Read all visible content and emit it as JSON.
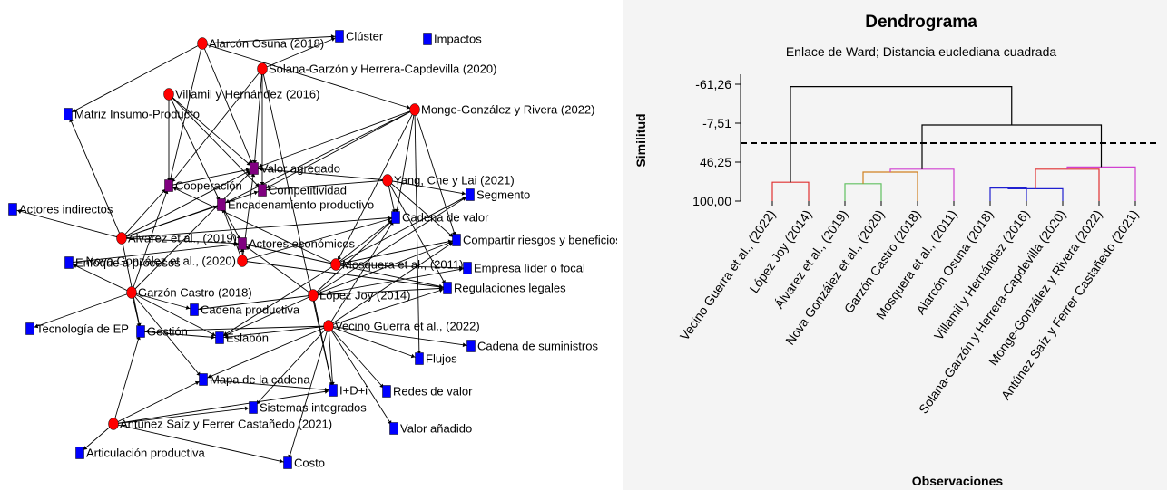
{
  "network": {
    "colors": {
      "author": "#ff0000",
      "concept": "#0000ff",
      "shared": "#800080",
      "edge": "#000000"
    },
    "nodes": [
      {
        "id": "alarcon",
        "label": "Alarcón Osuna (2018)",
        "type": "author"
      },
      {
        "id": "solana",
        "label": "Solana-Garzón y Herrera-Capdevilla (2020)",
        "type": "author"
      },
      {
        "id": "villamil",
        "label": "Villamil y Hernández (2016)",
        "type": "author"
      },
      {
        "id": "monge",
        "label": "Monge-González y Rivera (2022)",
        "type": "author"
      },
      {
        "id": "yang",
        "label": "Yang, Che y Lai (2021)",
        "type": "author"
      },
      {
        "id": "alvarez",
        "label": "Álvarez et al., (2019)",
        "type": "author"
      },
      {
        "id": "mosquera",
        "label": "Mosquera et al., (2011)",
        "type": "author"
      },
      {
        "id": "nova",
        "label": "Nova González et al., (2020)",
        "type": "author"
      },
      {
        "id": "garzon",
        "label": "Garzón Castro (2018)",
        "type": "author"
      },
      {
        "id": "lopez",
        "label": "López Joy (2014)",
        "type": "author"
      },
      {
        "id": "vecino",
        "label": "Vecino Guerra et al., (2022)",
        "type": "author"
      },
      {
        "id": "antunez",
        "label": "Antúnez Saíz y Ferrer Castañedo (2021)",
        "type": "author"
      },
      {
        "id": "cluster",
        "label": "Clúster",
        "type": "concept"
      },
      {
        "id": "impactos",
        "label": "Impactos",
        "type": "concept"
      },
      {
        "id": "matriz",
        "label": "Matriz Insumo-Producto",
        "type": "concept"
      },
      {
        "id": "valoragregado",
        "label": "Valor agregado",
        "type": "shared"
      },
      {
        "id": "cooperacion",
        "label": "Cooperación",
        "type": "shared"
      },
      {
        "id": "competitividad",
        "label": "Competitividad",
        "type": "shared"
      },
      {
        "id": "encadenamiento",
        "label": "Encadenamiento productivo",
        "type": "shared"
      },
      {
        "id": "actoreseco",
        "label": "Actores económicos",
        "type": "shared"
      },
      {
        "id": "segmento",
        "label": "Segmento",
        "type": "concept"
      },
      {
        "id": "cadenavalor",
        "label": "Cadena de valor",
        "type": "concept"
      },
      {
        "id": "actoresind",
        "label": "Actores indirectos",
        "type": "concept"
      },
      {
        "id": "compartir",
        "label": "Compartir riesgos y beneficios",
        "type": "concept"
      },
      {
        "id": "enfoque",
        "label": "Enfoque a procesos",
        "type": "concept"
      },
      {
        "id": "empresa",
        "label": "Empresa líder o focal",
        "type": "concept"
      },
      {
        "id": "regulaciones",
        "label": "Regulaciones legales",
        "type": "concept"
      },
      {
        "id": "cadenaprod",
        "label": "Cadena productiva",
        "type": "concept"
      },
      {
        "id": "tecnologia",
        "label": "Tecnología de EP",
        "type": "concept"
      },
      {
        "id": "gestion",
        "label": "Gestión",
        "type": "concept"
      },
      {
        "id": "eslabon",
        "label": "Eslabón",
        "type": "concept"
      },
      {
        "id": "cadenasum",
        "label": "Cadena de suministros",
        "type": "concept"
      },
      {
        "id": "flujos",
        "label": "Flujos",
        "type": "concept"
      },
      {
        "id": "mapa",
        "label": "Mapa de la cadena",
        "type": "concept"
      },
      {
        "id": "idi",
        "label": "I+D+i",
        "type": "concept"
      },
      {
        "id": "redes",
        "label": "Redes de valor",
        "type": "concept"
      },
      {
        "id": "sistemas",
        "label": "Sistemas integrados",
        "type": "concept"
      },
      {
        "id": "valoranadido",
        "label": "Valor añadido",
        "type": "concept"
      },
      {
        "id": "articulacion",
        "label": "Articulación productiva",
        "type": "concept"
      },
      {
        "id": "costo",
        "label": "Costo",
        "type": "concept"
      }
    ],
    "edges": [
      [
        "alarcon",
        "cluster"
      ],
      [
        "alarcon",
        "matriz"
      ],
      [
        "alarcon",
        "valoragregado"
      ],
      [
        "alarcon",
        "cooperacion"
      ],
      [
        "alarcon",
        "monge"
      ],
      [
        "solana",
        "cluster"
      ],
      [
        "solana",
        "valoragregado"
      ],
      [
        "solana",
        "cooperacion"
      ],
      [
        "solana",
        "competitividad"
      ],
      [
        "solana",
        "idi"
      ],
      [
        "villamil",
        "valoragregado"
      ],
      [
        "villamil",
        "encadenamiento"
      ],
      [
        "villamil",
        "competitividad"
      ],
      [
        "villamil",
        "cooperacion"
      ],
      [
        "monge",
        "valoragregado"
      ],
      [
        "monge",
        "competitividad"
      ],
      [
        "monge",
        "cadenavalor"
      ],
      [
        "monge",
        "compartir"
      ],
      [
        "monge",
        "flujos"
      ],
      [
        "monge",
        "encadenamiento"
      ],
      [
        "monge",
        "mosquera"
      ],
      [
        "yang",
        "valoragregado"
      ],
      [
        "yang",
        "competitividad"
      ],
      [
        "yang",
        "segmento"
      ],
      [
        "yang",
        "cadenavalor"
      ],
      [
        "yang",
        "regulaciones"
      ],
      [
        "yang",
        "compartir"
      ],
      [
        "alvarez",
        "matriz"
      ],
      [
        "alvarez",
        "cooperacion"
      ],
      [
        "alvarez",
        "encadenamiento"
      ],
      [
        "alvarez",
        "actoreseco"
      ],
      [
        "alvarez",
        "competitividad"
      ],
      [
        "alvarez",
        "actoresind"
      ],
      [
        "alvarez",
        "gestion"
      ],
      [
        "alvarez",
        "cadenavalor"
      ],
      [
        "alvarez",
        "valoragregado"
      ],
      [
        "mosquera",
        "cadenavalor"
      ],
      [
        "mosquera",
        "compartir"
      ],
      [
        "mosquera",
        "empresa"
      ],
      [
        "mosquera",
        "regulaciones"
      ],
      [
        "mosquera",
        "segmento"
      ],
      [
        "mosquera",
        "actoreseco"
      ],
      [
        "mosquera",
        "cooperacion"
      ],
      [
        "mosquera",
        "eslabon"
      ],
      [
        "nova",
        "actoreseco"
      ],
      [
        "nova",
        "encadenamiento"
      ],
      [
        "nova",
        "valoragregado"
      ],
      [
        "nova",
        "cadenavalor"
      ],
      [
        "nova",
        "regulaciones"
      ],
      [
        "garzon",
        "gestion"
      ],
      [
        "garzon",
        "cadenaprod"
      ],
      [
        "garzon",
        "eslabon"
      ],
      [
        "garzon",
        "enfoque"
      ],
      [
        "garzon",
        "tecnologia"
      ],
      [
        "garzon",
        "cooperacion"
      ],
      [
        "garzon",
        "mapa"
      ],
      [
        "garzon",
        "valoragregado"
      ],
      [
        "lopez",
        "cadenavalor"
      ],
      [
        "lopez",
        "compartir"
      ],
      [
        "lopez",
        "empresa"
      ],
      [
        "lopez",
        "regulaciones"
      ],
      [
        "lopez",
        "eslabon"
      ],
      [
        "lopez",
        "cadenaprod"
      ],
      [
        "lopez",
        "idi"
      ],
      [
        "lopez",
        "segmento"
      ],
      [
        "lopez",
        "actoreseco"
      ],
      [
        "vecino",
        "cadenasum"
      ],
      [
        "vecino",
        "flujos"
      ],
      [
        "vecino",
        "redes"
      ],
      [
        "vecino",
        "valoranadido"
      ],
      [
        "vecino",
        "idi"
      ],
      [
        "vecino",
        "sistemas"
      ],
      [
        "vecino",
        "eslabon"
      ],
      [
        "vecino",
        "regulaciones"
      ],
      [
        "vecino",
        "compartir"
      ],
      [
        "vecino",
        "costo"
      ],
      [
        "vecino",
        "mapa"
      ],
      [
        "vecino",
        "cadenavalor"
      ],
      [
        "vecino",
        "gestion"
      ],
      [
        "antunez",
        "articulacion"
      ],
      [
        "antunez",
        "costo"
      ],
      [
        "antunez",
        "gestion"
      ],
      [
        "antunez",
        "idi"
      ],
      [
        "antunez",
        "mapa"
      ],
      [
        "antunez",
        "sistemas"
      ],
      [
        "enfoque",
        "actoreseco"
      ],
      [
        "cooperacion",
        "valoragregado"
      ],
      [
        "encadenamiento",
        "actoreseco"
      ],
      [
        "mapa",
        "idi"
      ],
      [
        "gestion",
        "eslabon"
      ]
    ]
  },
  "chart_data": {
    "type": "dendrogram",
    "title": "Dendrograma",
    "subtitle": "Enlace de Ward; Distancia euclediana cuadrada",
    "xlabel": "Observaciones",
    "ylabel": "Similitud",
    "ylim": [
      100.0,
      -65.0
    ],
    "yticks": [
      "-61,26",
      "-7,51",
      "46,25",
      "100,00"
    ],
    "ytick_values": [
      -61.26,
      -7.51,
      46.25,
      100.0
    ],
    "cut_line": 20,
    "observations": [
      "Vecino Guerra et al., (2022)",
      "López Joy (2014)",
      "Álvarez et al., (2019)",
      "Nova González et al., (2020)",
      "Garzón Castro (2018)",
      "Mosquera et al., (2011)",
      "Alarcón Osuna (2018)",
      "Villamil y Hernández (2016)",
      "Solana-Garzón y Herrera-Capdevilla (2020)",
      "Monge-González y Rivera (2022)",
      "Antúnez Saíz y Ferrer Castañedo (2021)"
    ],
    "merges": [
      {
        "left": "L0",
        "right": "L1",
        "height": 74,
        "color": "#e03030"
      },
      {
        "left": "L2",
        "right": "L3",
        "height": 76,
        "color": "#60c060"
      },
      {
        "left": "M1",
        "right": "L4",
        "height": 60,
        "color": "#d08020"
      },
      {
        "left": "M2",
        "right": "L5",
        "height": 56,
        "color": "#d040d0"
      },
      {
        "left": "L6",
        "right": "L7",
        "height": 82,
        "color": "#2020d0"
      },
      {
        "left": "M4",
        "right": "L8",
        "height": 83,
        "color": "#2020d0"
      },
      {
        "left": "M5",
        "right": "L9",
        "height": 56,
        "color": "#e03030"
      },
      {
        "left": "M6",
        "right": "L10",
        "height": 53,
        "color": "#d040d0"
      },
      {
        "left": "M3",
        "right": "M7",
        "height": -5,
        "color": "#000000"
      },
      {
        "left": "M0",
        "right": "M8",
        "height": -58,
        "color": "#000000"
      }
    ]
  }
}
